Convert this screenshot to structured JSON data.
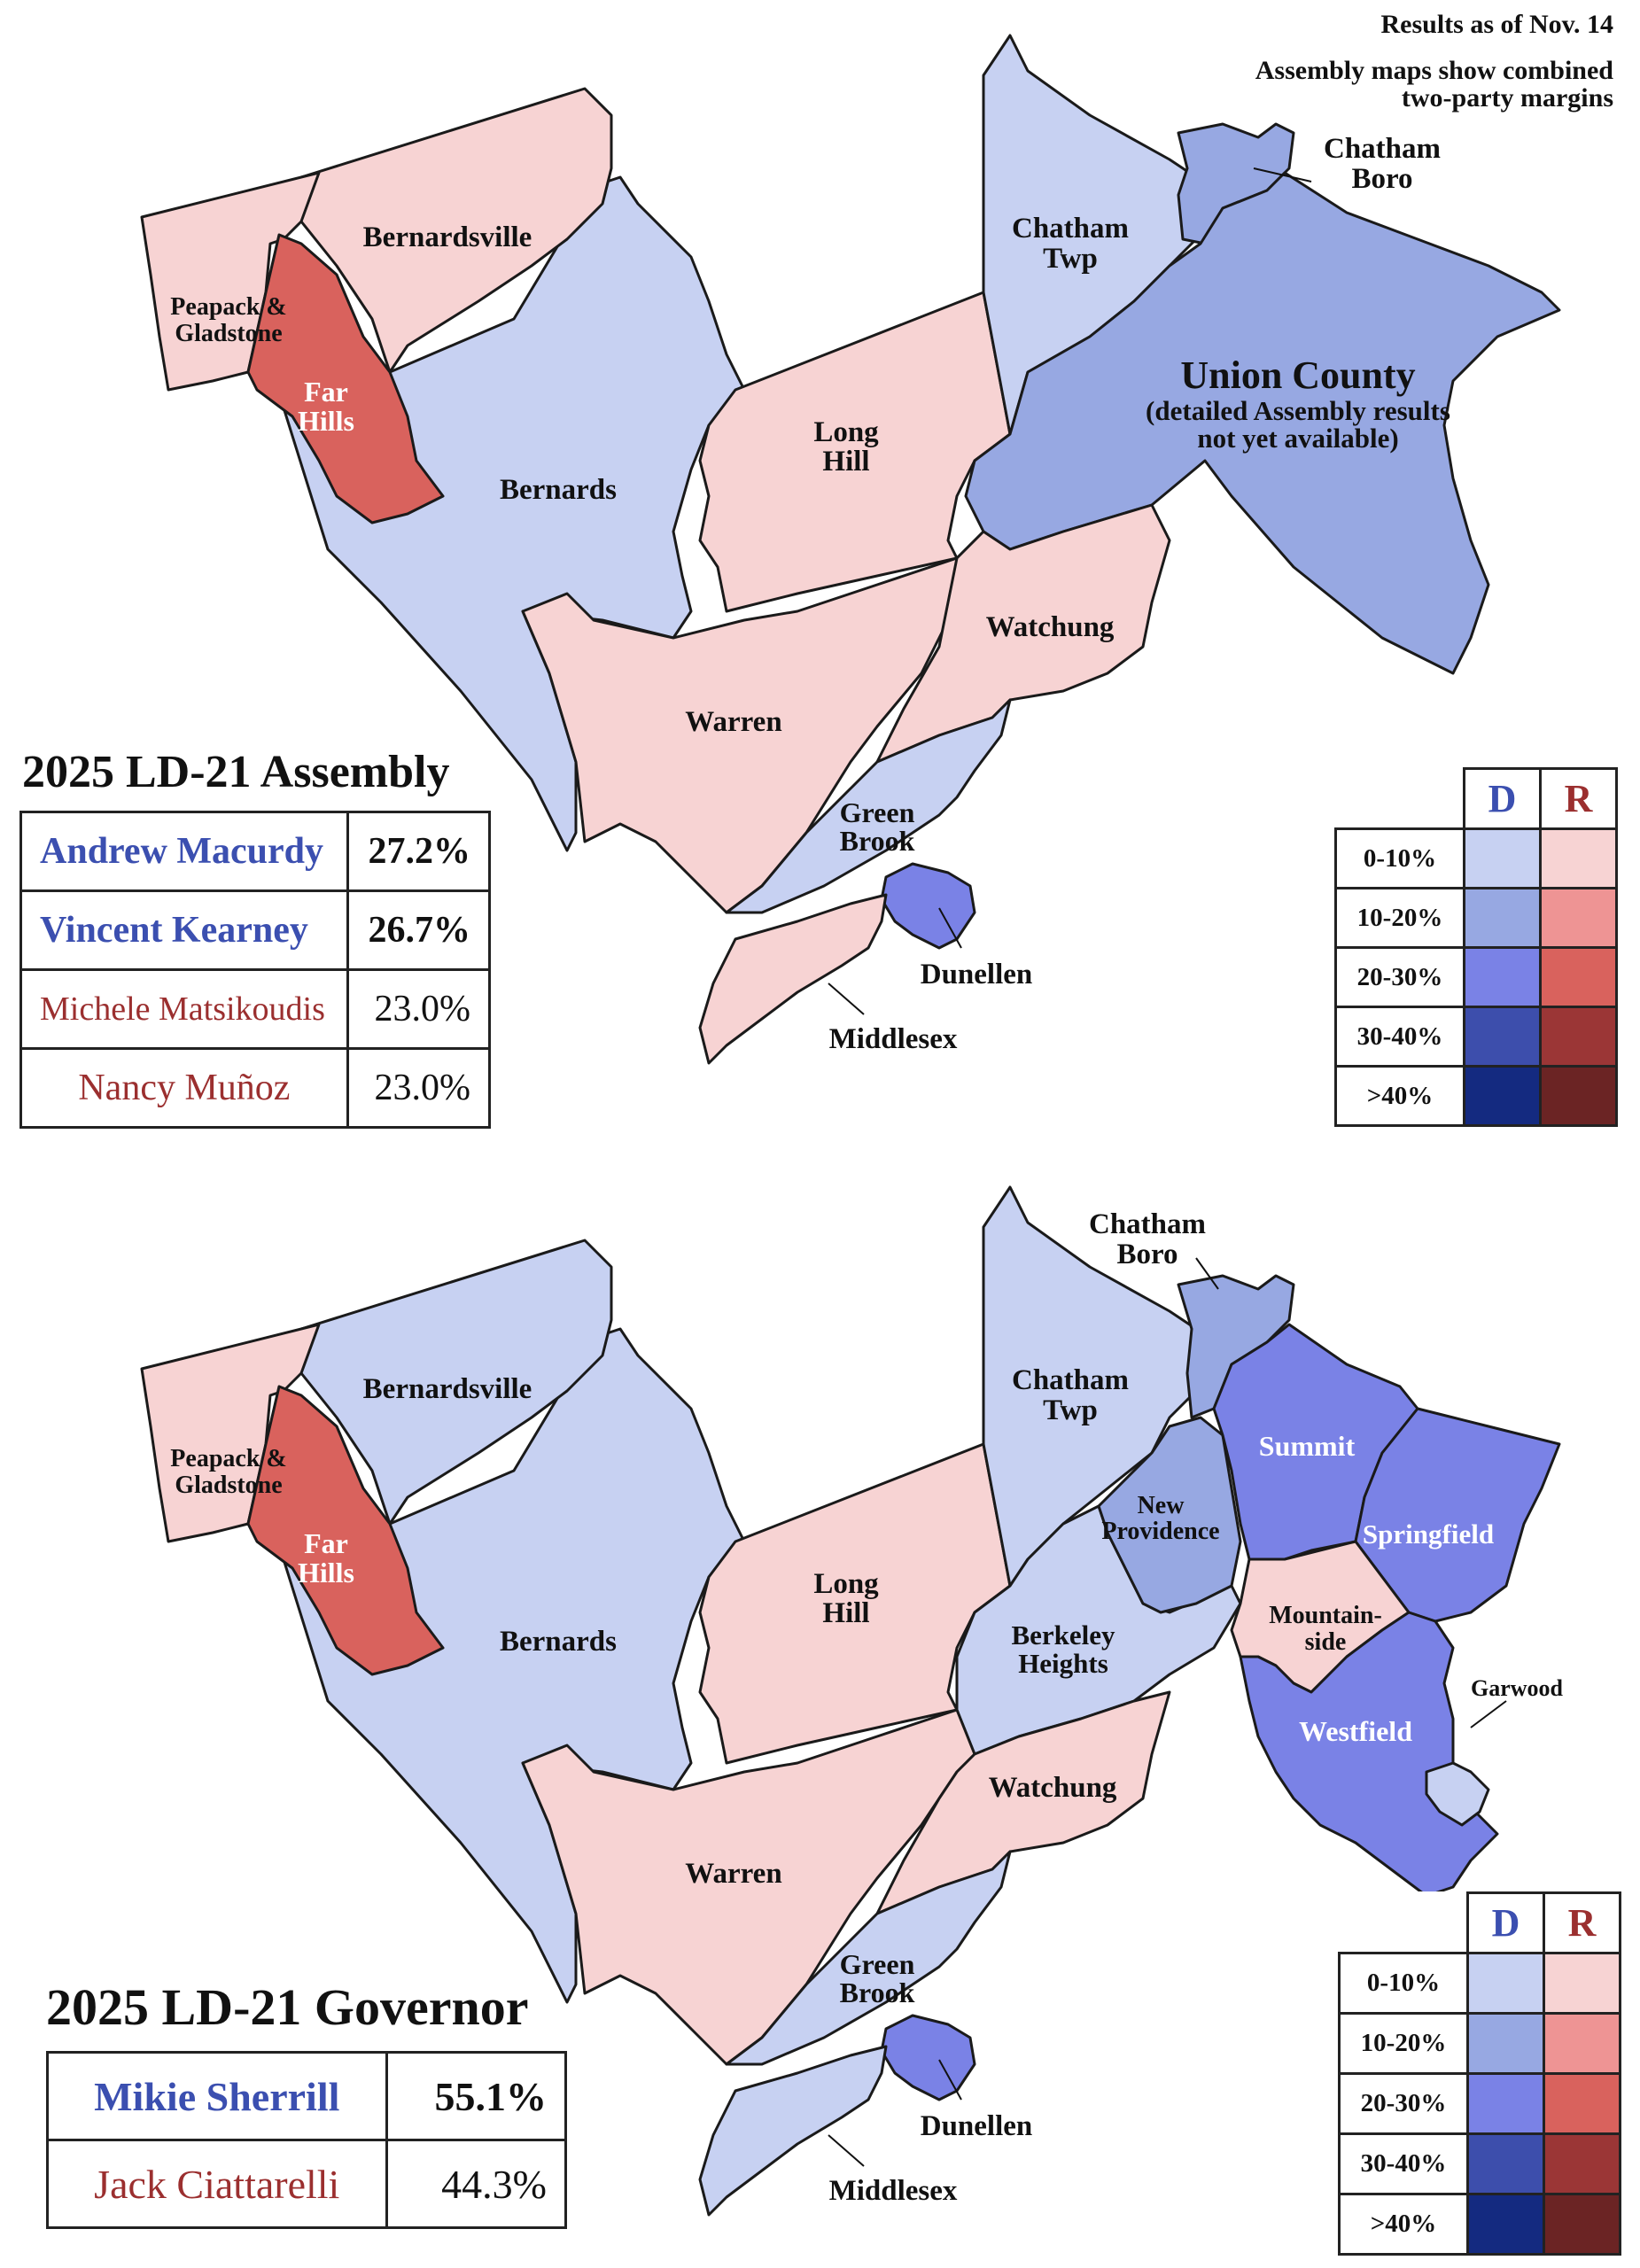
{
  "notes": {
    "results_as_of": "Results as of Nov. 14",
    "assembly_note_line1": "Assembly maps show combined",
    "assembly_note_line2": "two-party margins"
  },
  "colors": {
    "d_0_10": "#c7d1f2",
    "d_10_20": "#97a8e2",
    "d_20_30": "#7a82e6",
    "d_30_40": "#3d4eac",
    "d_40_plus": "#142a80",
    "r_0_10": "#f7d3d3",
    "r_10_20": "#ee9494",
    "r_20_30": "#d9625d",
    "r_30_40": "#9b3636",
    "r_40_plus": "#6b2424",
    "border": "#1a1a1a"
  },
  "legend": {
    "d_header": "D",
    "r_header": "R",
    "rows": [
      "0-10%",
      "10-20%",
      "20-30%",
      "30-40%",
      ">40%"
    ]
  },
  "assembly": {
    "title": "2025 LD-21 Assembly",
    "candidates": [
      {
        "name": "Andrew Macurdy",
        "pct": "27.2%",
        "party": "D"
      },
      {
        "name": "Vincent Kearney",
        "pct": "26.7%",
        "party": "D"
      },
      {
        "name": "Michele Matsikoudis",
        "pct": "23.0%",
        "party": "R"
      },
      {
        "name": "Nancy Muñoz",
        "pct": "23.0%",
        "party": "R"
      }
    ],
    "regions": [
      {
        "name": "Peapack & Gladstone",
        "margin_bin": "R 0-10%"
      },
      {
        "name": "Bernardsville",
        "margin_bin": "R 0-10%"
      },
      {
        "name": "Far Hills",
        "margin_bin": "R 20-30%"
      },
      {
        "name": "Bernards",
        "margin_bin": "D 0-10%"
      },
      {
        "name": "Warren",
        "margin_bin": "R 0-10%"
      },
      {
        "name": "Long Hill",
        "margin_bin": "R 0-10%"
      },
      {
        "name": "Chatham Twp",
        "margin_bin": "D 0-10%"
      },
      {
        "name": "Chatham Boro",
        "margin_bin": "D 10-20%"
      },
      {
        "name": "Watchung",
        "margin_bin": "R 0-10%"
      },
      {
        "name": "Green Brook",
        "margin_bin": "D 0-10%"
      },
      {
        "name": "Dunellen",
        "margin_bin": "D 20-30%"
      },
      {
        "name": "Middlesex",
        "margin_bin": "R 0-10%"
      },
      {
        "name": "Union County",
        "margin_bin": "D 10-20%"
      }
    ],
    "labels": {
      "peapack_1": "Peapack &",
      "peapack_2": "Gladstone",
      "bernardsville": "Bernardsville",
      "far_1": "Far",
      "far_2": "Hills",
      "bernards": "Bernards",
      "warren": "Warren",
      "long_1": "Long",
      "long_2": "Hill",
      "chatham_twp_1": "Chatham",
      "chatham_twp_2": "Twp",
      "chatham_boro_1": "Chatham",
      "chatham_boro_2": "Boro",
      "union_title": "Union County",
      "union_sub_1": "(detailed Assembly results",
      "union_sub_2": "not yet available)",
      "watchung": "Watchung",
      "green_1": "Green",
      "green_2": "Brook",
      "dunellen": "Dunellen",
      "middlesex": "Middlesex"
    }
  },
  "governor": {
    "title": "2025 LD-21 Governor",
    "candidates": [
      {
        "name": "Mikie Sherrill",
        "pct": "55.1%",
        "party": "D"
      },
      {
        "name": "Jack Ciattarelli",
        "pct": "44.3%",
        "party": "R"
      }
    ],
    "regions": [
      {
        "name": "Peapack & Gladstone",
        "margin_bin": "R 0-10%"
      },
      {
        "name": "Bernardsville",
        "margin_bin": "D 0-10%"
      },
      {
        "name": "Far Hills",
        "margin_bin": "R 20-30%"
      },
      {
        "name": "Bernards",
        "margin_bin": "D 0-10%"
      },
      {
        "name": "Warren",
        "margin_bin": "R 0-10%"
      },
      {
        "name": "Long Hill",
        "margin_bin": "R 0-10%"
      },
      {
        "name": "Chatham Twp",
        "margin_bin": "D 0-10%"
      },
      {
        "name": "Chatham Boro",
        "margin_bin": "D 10-20%"
      },
      {
        "name": "New Providence",
        "margin_bin": "D 10-20%"
      },
      {
        "name": "Summit",
        "margin_bin": "D 20-30%"
      },
      {
        "name": "Springfield",
        "margin_bin": "D 20-30%"
      },
      {
        "name": "Berkeley Heights",
        "margin_bin": "D 0-10%"
      },
      {
        "name": "Mountainside",
        "margin_bin": "R 0-10%"
      },
      {
        "name": "Westfield",
        "margin_bin": "D 20-30%"
      },
      {
        "name": "Garwood",
        "margin_bin": "D 0-10%"
      },
      {
        "name": "Watchung",
        "margin_bin": "R 0-10%"
      },
      {
        "name": "Green Brook",
        "margin_bin": "D 0-10%"
      },
      {
        "name": "Dunellen",
        "margin_bin": "D 20-30%"
      },
      {
        "name": "Middlesex",
        "margin_bin": "D 0-10%"
      }
    ],
    "labels": {
      "peapack_1": "Peapack &",
      "peapack_2": "Gladstone",
      "bernardsville": "Bernardsville",
      "far_1": "Far",
      "far_2": "Hills",
      "bernards": "Bernards",
      "warren": "Warren",
      "long_1": "Long",
      "long_2": "Hill",
      "chatham_twp_1": "Chatham",
      "chatham_twp_2": "Twp",
      "chatham_boro_1": "Chatham",
      "chatham_boro_2": "Boro",
      "new_prov_1": "New",
      "new_prov_2": "Providence",
      "summit": "Summit",
      "springfield": "Springfield",
      "berkeley_1": "Berkeley",
      "berkeley_2": "Heights",
      "mountainside_1": "Mountain-",
      "mountainside_2": "side",
      "westfield": "Westfield",
      "garwood": "Garwood",
      "watchung": "Watchung",
      "green_1": "Green",
      "green_2": "Brook",
      "dunellen": "Dunellen",
      "middlesex": "Middlesex"
    }
  }
}
